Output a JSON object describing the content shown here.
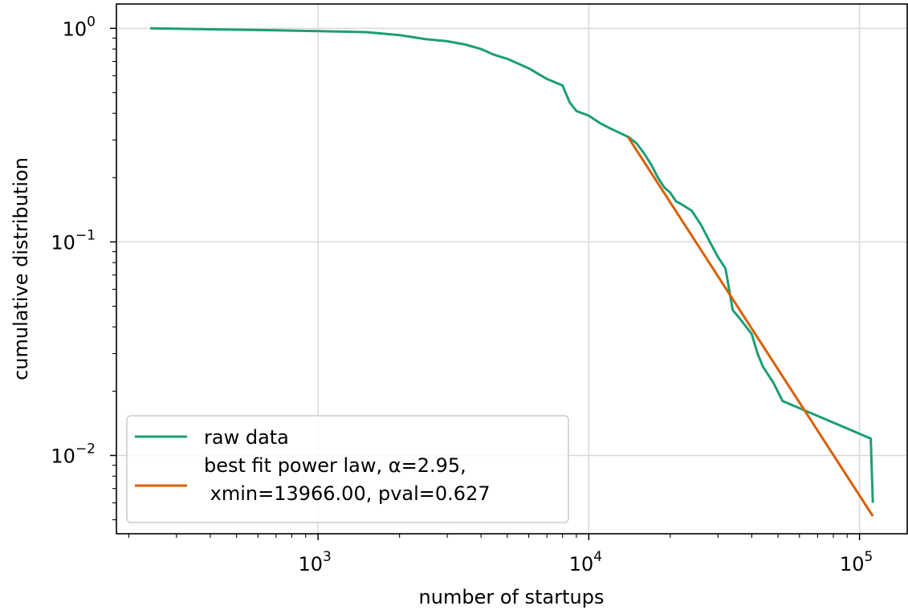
{
  "chart_data": {
    "type": "line",
    "xscale": "log",
    "yscale": "log",
    "xlim": [
      180,
      150000
    ],
    "ylim": [
      0.0043,
      1.3
    ],
    "xlabel": "number of startups",
    "ylabel": "cumulative distribution",
    "x_ticks": [
      {
        "value": 1000,
        "base": "10",
        "exp": "3"
      },
      {
        "value": 10000,
        "base": "10",
        "exp": "4"
      },
      {
        "value": 100000,
        "base": "10",
        "exp": "5"
      }
    ],
    "y_ticks": [
      {
        "value": 1,
        "base": "10",
        "exp": "0"
      },
      {
        "value": 0.1,
        "base": "10",
        "exp": "−1"
      },
      {
        "value": 0.01,
        "base": "10",
        "exp": "−2"
      }
    ],
    "grid": true,
    "legend_position": "lower-left",
    "series": [
      {
        "name": "raw data",
        "color": "#1b9e77",
        "x": [
          240,
          700,
          1000,
          1500,
          2000,
          2500,
          3000,
          3500,
          4000,
          4500,
          5000,
          6000,
          7000,
          8000,
          8500,
          9000,
          10000,
          11000,
          12000,
          14000,
          15000,
          16000,
          17000,
          18000,
          19000,
          20000,
          21000,
          22000,
          24000,
          26000,
          28000,
          30000,
          32000,
          33000,
          34000,
          36000,
          40000,
          42000,
          44000,
          48000,
          52000,
          110000,
          112000
        ],
        "y": [
          1.0,
          0.98,
          0.97,
          0.96,
          0.93,
          0.89,
          0.87,
          0.84,
          0.8,
          0.75,
          0.72,
          0.65,
          0.58,
          0.54,
          0.45,
          0.41,
          0.39,
          0.36,
          0.34,
          0.31,
          0.29,
          0.26,
          0.23,
          0.2,
          0.18,
          0.17,
          0.155,
          0.15,
          0.14,
          0.12,
          0.1,
          0.085,
          0.075,
          0.06,
          0.048,
          0.044,
          0.037,
          0.03,
          0.026,
          0.022,
          0.018,
          0.012,
          0.006
        ]
      },
      {
        "name": "best fit power law, α=2.95,\n xmin=13966.00, pval=0.627",
        "legend_lines": [
          "best fit power law, α=2.95,",
          " xmin=13966.00, pval=0.627"
        ],
        "color": "#d95f02",
        "x": [
          13966,
          112000
        ],
        "y": [
          0.31,
          0.0052
        ]
      }
    ]
  }
}
